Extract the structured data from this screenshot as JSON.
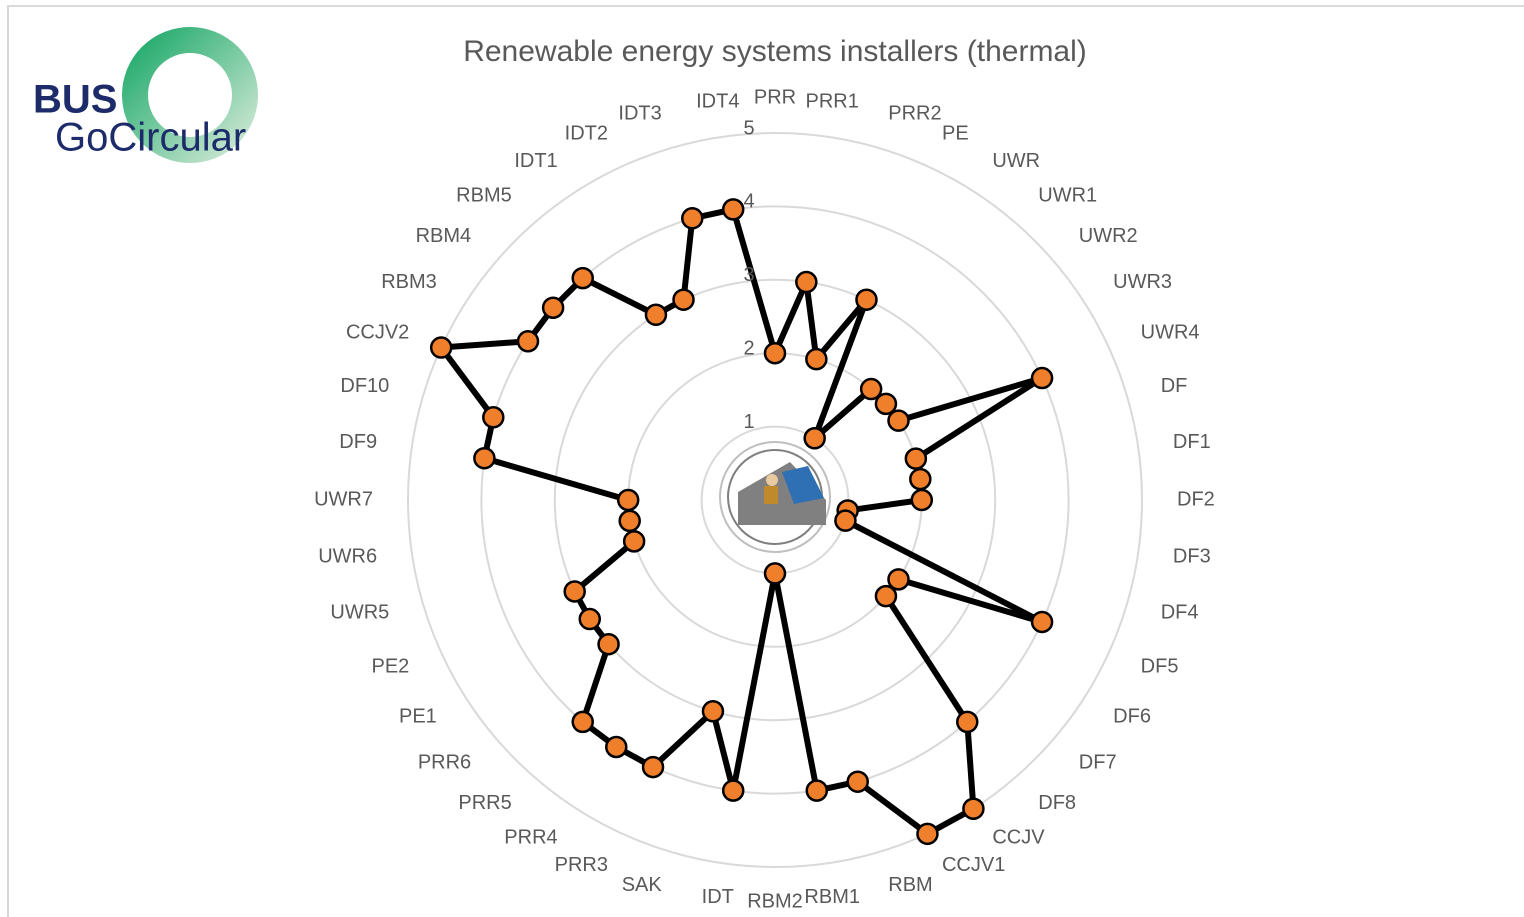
{
  "logo": {
    "line1": "BUS",
    "line2": "GoCircular"
  },
  "chart_data": {
    "type": "radar",
    "title": "Renewable energy systems installers (thermal)",
    "categories": [
      "PRR",
      "PRR1",
      "PRR2",
      "PE",
      "UWR",
      "UWR1",
      "UWR2",
      "UWR3",
      "UWR4",
      "DF",
      "DF1",
      "DF2",
      "DF3",
      "DF4",
      "DF5",
      "DF6",
      "DF7",
      "DF8",
      "CCJV",
      "CCJV1",
      "RBM",
      "RBM1",
      "RBM2",
      "IDT",
      "SAK",
      "PRR3",
      "PRR4",
      "PRR5",
      "PRR6",
      "PE1",
      "PE2",
      "UWR5",
      "UWR6",
      "UWR7",
      "DF9",
      "DF10",
      "CCJV2",
      "RBM3",
      "RBM4",
      "RBM5",
      "IDT1",
      "IDT2",
      "IDT3",
      "IDT4"
    ],
    "series": [
      {
        "color": "#000000",
        "marker_color": "#f07f2c",
        "values": [
          2,
          3,
          2,
          3,
          1,
          2,
          2,
          2,
          4,
          2,
          2,
          2,
          1,
          1,
          4,
          2,
          2,
          4,
          5,
          5,
          4,
          4,
          1,
          4,
          3,
          4,
          4,
          4,
          3,
          3,
          3,
          2,
          2,
          2,
          4,
          4,
          5,
          4,
          4,
          4,
          3,
          3,
          4,
          4
        ]
      }
    ],
    "ylim": [
      0,
      5
    ],
    "yticks": [
      1,
      2,
      3,
      4,
      5
    ],
    "grid": true
  }
}
